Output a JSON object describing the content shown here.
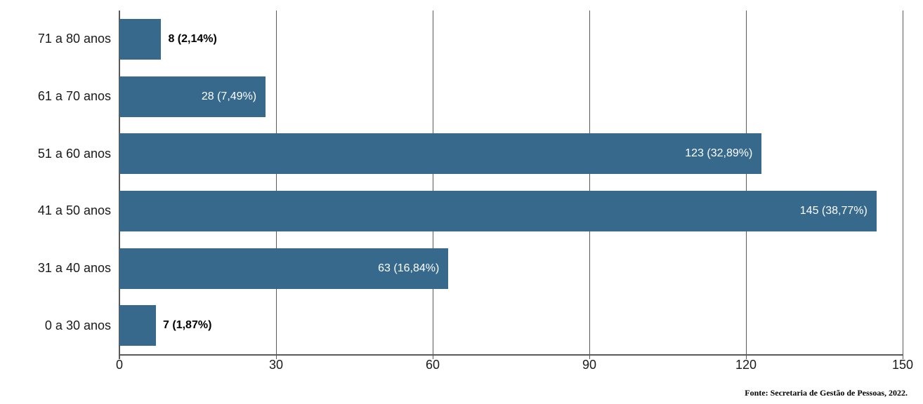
{
  "chart_data": {
    "type": "bar",
    "orientation": "horizontal",
    "title": "",
    "xlabel": "",
    "ylabel": "",
    "categories": [
      "71 a 80 anos",
      "61 a 70 anos",
      "51 a 60 anos",
      "41 a 50 anos",
      "31 a 40 anos",
      "0 a 30 anos"
    ],
    "values": [
      8,
      28,
      123,
      145,
      63,
      7
    ],
    "data_labels": [
      "8 (2,14%)",
      "28 (7,49%)",
      "123 (32,89%)",
      "145 (38,77%)",
      "63 (16,84%)",
      "7 (1,87%)"
    ],
    "label_placement": [
      "outside",
      "inside",
      "inside",
      "inside",
      "inside",
      "outside"
    ],
    "x_ticks": [
      0,
      30,
      60,
      90,
      120,
      150
    ],
    "xlim": [
      0,
      150
    ],
    "grid": true,
    "legend": false,
    "bar_color": "#36698C",
    "axis_color": "#595959",
    "inside_label_color": "#FFFFFF",
    "outside_label_color": "#000000"
  },
  "source_note": "Fonte: Secretaria de Gestão de Pessoas, 2022."
}
